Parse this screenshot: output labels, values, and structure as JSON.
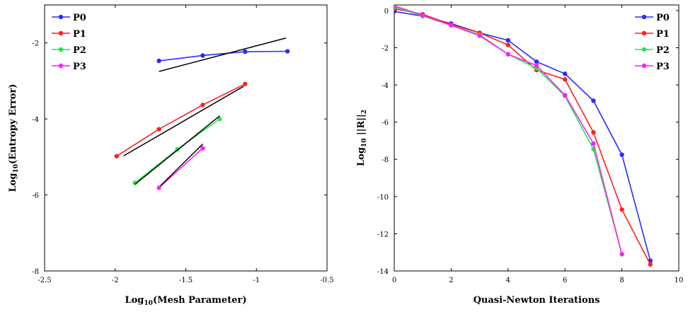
{
  "chart_data": [
    {
      "type": "line",
      "title": "",
      "xlabel": "Log10(Mesh Parameter)",
      "ylabel": "Log10(Entropy Error)",
      "xlim": [
        -2.5,
        -0.5
      ],
      "ylim": [
        -8,
        -1
      ],
      "xticks": [
        -2.5,
        -2,
        -1.5,
        -1,
        -0.5
      ],
      "yticks": [
        -8,
        -6,
        -4,
        -2
      ],
      "xtick_labels": [
        "-2.5",
        "-2",
        "-1.5",
        "-1",
        "-0.5"
      ],
      "ytick_labels": [
        "-8",
        "-6",
        "-4",
        "-2"
      ],
      "grid": false,
      "legend_position": "top-left",
      "series": [
        {
          "name": "P0",
          "color": "#2b2bff",
          "x": [
            -1.69,
            -1.38,
            -1.08,
            -0.78
          ],
          "y": [
            -2.47,
            -2.33,
            -2.23,
            -2.22
          ]
        },
        {
          "name": "P1",
          "color": "#ff1f1f",
          "x": [
            -1.99,
            -1.69,
            -1.38,
            -1.08
          ],
          "y": [
            -4.98,
            -4.27,
            -3.63,
            -3.08
          ]
        },
        {
          "name": "P2",
          "color": "#22e84a",
          "x": [
            -1.86,
            -1.56,
            -1.26
          ],
          "y": [
            -5.68,
            -4.8,
            -4.0
          ]
        },
        {
          "name": "P3",
          "color": "#ff1fff",
          "x": [
            -1.69,
            -1.38
          ],
          "y": [
            -5.81,
            -4.77
          ]
        }
      ],
      "reference_lines": [
        {
          "color": "#000000",
          "x": [
            -1.69,
            -0.79
          ],
          "y": [
            -2.75,
            -1.87
          ]
        },
        {
          "color": "#000000",
          "x": [
            -1.94,
            -1.09
          ],
          "y": [
            -4.97,
            -3.14
          ]
        },
        {
          "color": "#000000",
          "x": [
            -1.86,
            -1.26
          ],
          "y": [
            -5.72,
            -3.92
          ]
        },
        {
          "color": "#000000",
          "x": [
            -1.68,
            -1.38
          ],
          "y": [
            -5.76,
            -4.66
          ]
        }
      ]
    },
    {
      "type": "line",
      "title": "",
      "xlabel": "Quasi-Newton Iterations",
      "ylabel": "Log10 ||R||2",
      "xlim": [
        0,
        10
      ],
      "ylim": [
        -14,
        0.3
      ],
      "xticks": [
        0,
        2,
        4,
        6,
        8,
        10
      ],
      "yticks": [
        -14,
        -12,
        -10,
        -8,
        -6,
        -4,
        -2,
        0
      ],
      "xtick_labels": [
        "0",
        "2",
        "4",
        "6",
        "8",
        "10"
      ],
      "ytick_labels": [
        "-14",
        "-12",
        "-10",
        "-8",
        "-6",
        "-4",
        "-2",
        "0"
      ],
      "grid": false,
      "legend_position": "top-right",
      "series": [
        {
          "name": "P0",
          "color": "#2b2bff",
          "x": [
            0,
            1,
            2,
            3,
            4,
            5,
            6,
            7,
            8,
            9
          ],
          "y": [
            -0.05,
            -0.3,
            -0.7,
            -1.2,
            -1.6,
            -2.75,
            -3.4,
            -4.85,
            -7.75,
            -13.45
          ]
        },
        {
          "name": "P1",
          "color": "#ff1f1f",
          "x": [
            0,
            1,
            2,
            3,
            4,
            5,
            6,
            7,
            8,
            9
          ],
          "y": [
            0.1,
            -0.2,
            -0.75,
            -1.2,
            -1.85,
            -3.2,
            -3.7,
            -6.55,
            -10.7,
            -13.65
          ]
        },
        {
          "name": "P2",
          "color": "#22e84a",
          "x": [
            0,
            1,
            2,
            3,
            4,
            5,
            6,
            7,
            8
          ],
          "y": [
            0.2,
            -0.3,
            -0.8,
            -1.3,
            -2.35,
            -3.1,
            -4.6,
            -7.45,
            -13.1
          ]
        },
        {
          "name": "P3",
          "color": "#ff1fff",
          "x": [
            0,
            1,
            2,
            3,
            4,
            5,
            6,
            7,
            8
          ],
          "y": [
            0.25,
            -0.25,
            -0.8,
            -1.35,
            -2.35,
            -2.95,
            -4.55,
            -7.15,
            -13.1
          ]
        }
      ]
    }
  ]
}
